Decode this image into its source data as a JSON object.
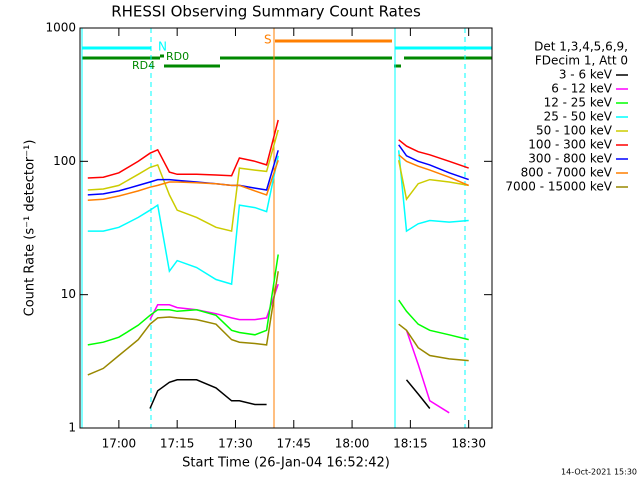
{
  "chart_data": {
    "type": "line",
    "title": "RHESSI Observing Summary Count Rates",
    "xlabel": "Start Time (26-Jan-04 16:52:42)",
    "ylabel": "Count Rate (s⁻¹ detector⁻¹)",
    "legend_header": [
      "Det 1,3,4,5,6,9,",
      "FDecim 1, Att 0"
    ],
    "annotations": [
      "N",
      "S",
      "RD4",
      "RD0"
    ],
    "footer": "14-Oct-2021 15:30",
    "log_y": true,
    "ylim": [
      1,
      1000
    ],
    "yticks": [
      1,
      10,
      100,
      1000
    ],
    "xlim": [
      "16:50",
      "18:36"
    ],
    "xticks": [
      "17:00",
      "17:15",
      "17:30",
      "17:45",
      "18:00",
      "18:15",
      "18:30"
    ],
    "x": [
      "16:52",
      "16:56",
      "17:00",
      "17:05",
      "17:08",
      "17:10",
      "17:13",
      "17:15",
      "17:20",
      "17:25",
      "17:29",
      "17:31",
      "17:35",
      "17:38",
      "17:41",
      "17:45",
      "18:12",
      "18:14",
      "18:17",
      "18:20",
      "18:25",
      "18:30"
    ],
    "series": [
      {
        "name": "3 - 6 keV",
        "color": "#000000",
        "values": [
          null,
          null,
          null,
          null,
          1.4,
          1.9,
          2.2,
          2.3,
          2.3,
          2.0,
          1.6,
          1.6,
          1.5,
          1.5,
          null,
          null,
          null,
          2.3,
          1.8,
          1.4,
          null,
          null
        ]
      },
      {
        "name": "6 - 12 keV",
        "color": "#ff00ff",
        "values": [
          null,
          null,
          null,
          null,
          6.5,
          8.4,
          8.4,
          8.0,
          7.7,
          7.2,
          6.7,
          6.5,
          6.5,
          6.7,
          12,
          null,
          null,
          5.4,
          3.0,
          1.6,
          1.3,
          null
        ]
      },
      {
        "name": "12 - 25 keV",
        "color": "#00ff00",
        "values": [
          4.2,
          4.4,
          4.8,
          5.9,
          7.0,
          7.7,
          7.7,
          7.5,
          7.7,
          7.0,
          5.4,
          5.2,
          5.0,
          5.4,
          20,
          null,
          9.1,
          7.5,
          6.0,
          5.4,
          5.0,
          4.6
        ]
      },
      {
        "name": "25 - 50 keV",
        "color": "#00ffff",
        "values": [
          30,
          30,
          32,
          38,
          43,
          47,
          15,
          18,
          16,
          13,
          12,
          47,
          45,
          42,
          110,
          null,
          121,
          30,
          34,
          36,
          35,
          36
        ]
      },
      {
        "name": "50 - 100 keV",
        "color": "#cccc00",
        "values": [
          61,
          62,
          66,
          80,
          90,
          94,
          56,
          43,
          38,
          32,
          30,
          89,
          86,
          84,
          172,
          null,
          102,
          52,
          68,
          73,
          70,
          66
        ]
      },
      {
        "name": "100 - 300 keV",
        "color": "#ff0000",
        "values": [
          75,
          76,
          82,
          100,
          115,
          122,
          83,
          80,
          80,
          79,
          78,
          106,
          100,
          94,
          204,
          null,
          145,
          130,
          118,
          112,
          100,
          89
        ]
      },
      {
        "name": "300 - 800 keV",
        "color": "#0000ff",
        "values": [
          56,
          57,
          60,
          66,
          70,
          73,
          73,
          72,
          70,
          68,
          66,
          66,
          63,
          61,
          121,
          null,
          133,
          110,
          100,
          94,
          82,
          73
        ]
      },
      {
        "name": "800 - 7000 keV",
        "color": "#ff7f00",
        "values": [
          51,
          52,
          55,
          60,
          64,
          66,
          70,
          70,
          69,
          68,
          66,
          66,
          60,
          56,
          102,
          null,
          112,
          100,
          92,
          86,
          76,
          66
        ]
      },
      {
        "name": "7000 - 15000 keV",
        "color": "#998800",
        "values": [
          2.5,
          2.8,
          3.5,
          4.6,
          6.0,
          6.7,
          6.8,
          6.7,
          6.5,
          6.0,
          4.6,
          4.4,
          4.3,
          4.2,
          15,
          null,
          6.0,
          5.4,
          4.0,
          3.5,
          3.3,
          3.2
        ]
      }
    ]
  }
}
